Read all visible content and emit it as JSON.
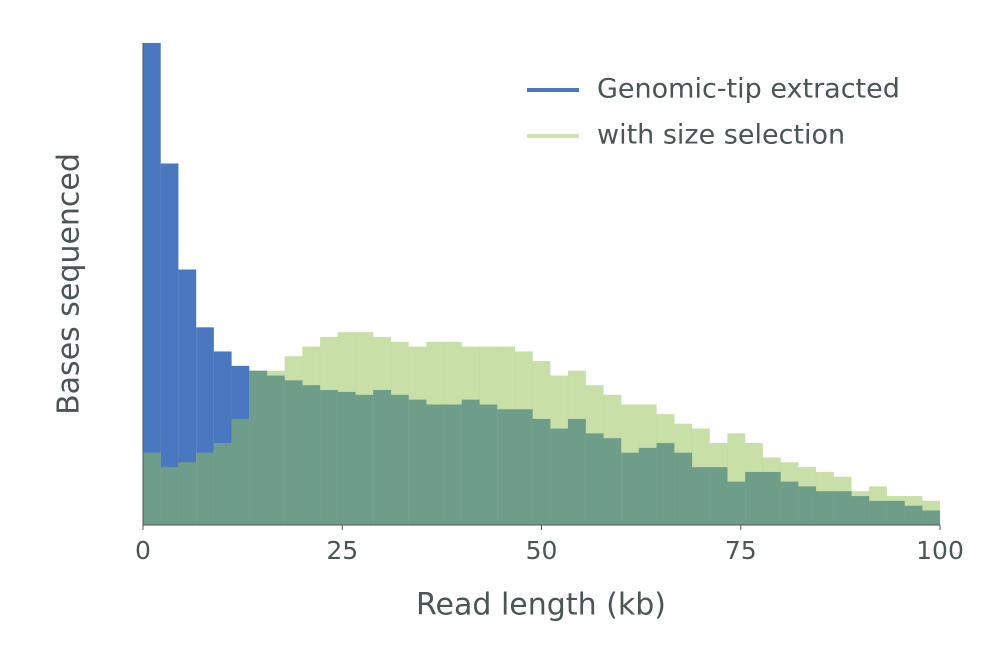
{
  "chart_data": {
    "type": "histogram",
    "xlabel": "Read length (kb)",
    "ylabel": "Bases sequenced",
    "bins": [
      0,
      2.22,
      4.44,
      6.67,
      8.89,
      11.11,
      13.33,
      15.56,
      17.78,
      20,
      22.22,
      24.44,
      26.67,
      28.89,
      31.11,
      33.33,
      35.56,
      37.78,
      40,
      42.22,
      44.44,
      46.67,
      48.89,
      51.11,
      53.33,
      55.56,
      57.78,
      60,
      62.22,
      64.44,
      66.67,
      68.89,
      71.11,
      73.33,
      75.56,
      77.78,
      80,
      82.22,
      84.44,
      86.67,
      88.89,
      91.11,
      93.33,
      95.56,
      97.78,
      100
    ],
    "series": [
      {
        "name": "Genomic-tip extracted",
        "color": "#4a78c0",
        "opacity": 1,
        "values": [
          100,
          75,
          53,
          41,
          36,
          33,
          32,
          31,
          30,
          29,
          28,
          27.6,
          27,
          28,
          27,
          26,
          25,
          25,
          26,
          25,
          24,
          24,
          22,
          20,
          22,
          19,
          18,
          15,
          16,
          17,
          15,
          12,
          12,
          9,
          11,
          11,
          9,
          8,
          7,
          7,
          6,
          5,
          5,
          4,
          3
        ]
      },
      {
        "name": "with size selection",
        "color": "#91c151",
        "opacity": 0.5,
        "values": [
          15,
          12,
          13,
          15,
          17,
          22,
          32,
          32,
          35,
          37,
          39,
          40,
          40,
          39,
          38,
          37,
          38,
          38,
          37,
          37,
          37,
          36,
          34,
          31,
          32,
          29,
          27,
          25,
          25,
          23,
          21,
          20,
          17,
          19,
          17,
          14,
          13,
          12,
          11,
          10,
          7,
          8,
          6,
          6,
          5
        ]
      }
    ],
    "xlim": [
      0,
      100
    ],
    "xticks": [
      0,
      25,
      50,
      75,
      100
    ],
    "ylim": [
      0,
      100
    ],
    "legend": "upper right"
  }
}
